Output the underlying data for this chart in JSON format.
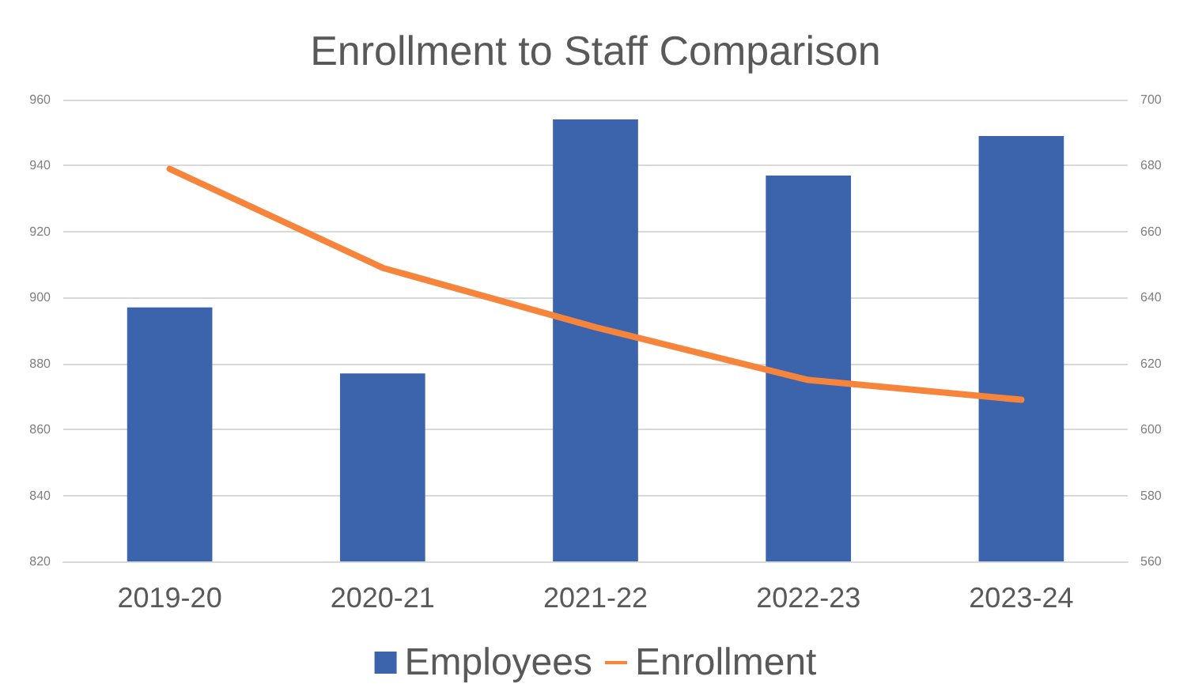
{
  "chart_data": {
    "type": "bar",
    "title": "Enrollment to Staff Comparison",
    "categories": [
      "2019-20",
      "2020-21",
      "2021-22",
      "2022-23",
      "2023-24"
    ],
    "series": [
      {
        "name": "Employees",
        "color": "#3c64ac",
        "values": [
          897,
          877,
          954,
          937,
          949
        ]
      },
      {
        "name": "Enrollment",
        "type": "line",
        "axis": "y2",
        "color": "#f7843b",
        "values": [
          679,
          649,
          631,
          615,
          609
        ]
      }
    ],
    "ylim": [
      820,
      960
    ],
    "yticks": [
      820,
      840,
      860,
      880,
      900,
      920,
      940,
      960
    ],
    "y2lim": [
      560,
      700
    ],
    "y2ticks": [
      560,
      580,
      600,
      620,
      640,
      660,
      680,
      700
    ],
    "grid": "y",
    "legend": "bottom",
    "marker": "none"
  }
}
